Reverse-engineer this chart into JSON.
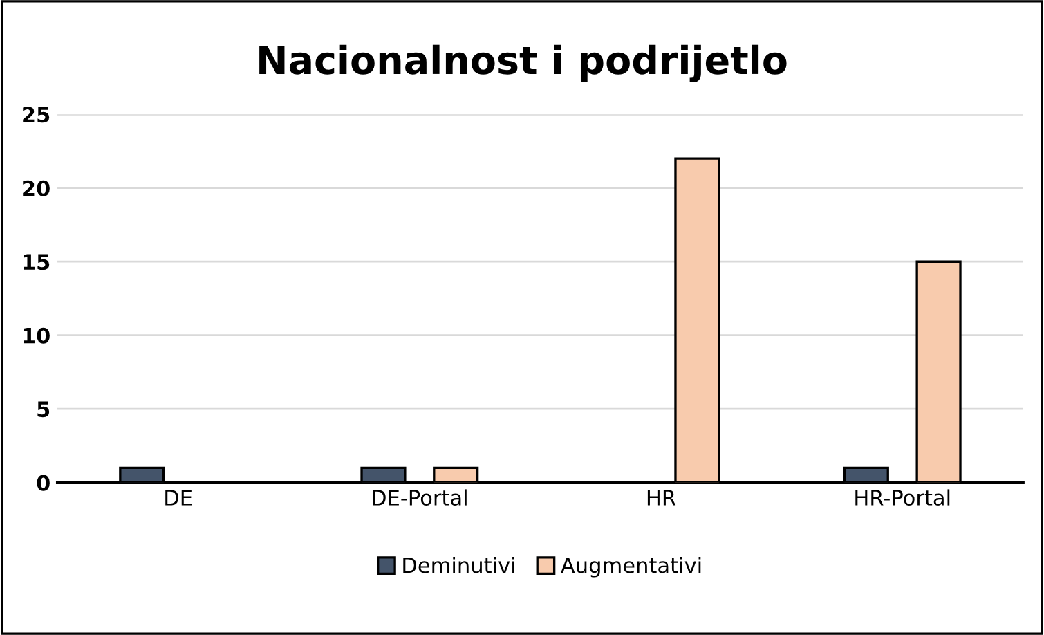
{
  "chart_data": {
    "type": "bar",
    "title": "Nacionalnost i podrijetlo",
    "categories": [
      "DE",
      "DE-Portal",
      "HR",
      "HR-Portal"
    ],
    "series": [
      {
        "name": "Deminutivi",
        "color": "#44546a",
        "values": [
          1,
          1,
          null,
          1
        ]
      },
      {
        "name": "Augmentativi",
        "color": "#f8cbad",
        "values": [
          null,
          1,
          22,
          15
        ]
      }
    ],
    "ylim": [
      0,
      25
    ],
    "yticks": [
      0,
      5,
      10,
      15,
      20,
      25
    ],
    "grid": "y",
    "legend": "bottom"
  }
}
